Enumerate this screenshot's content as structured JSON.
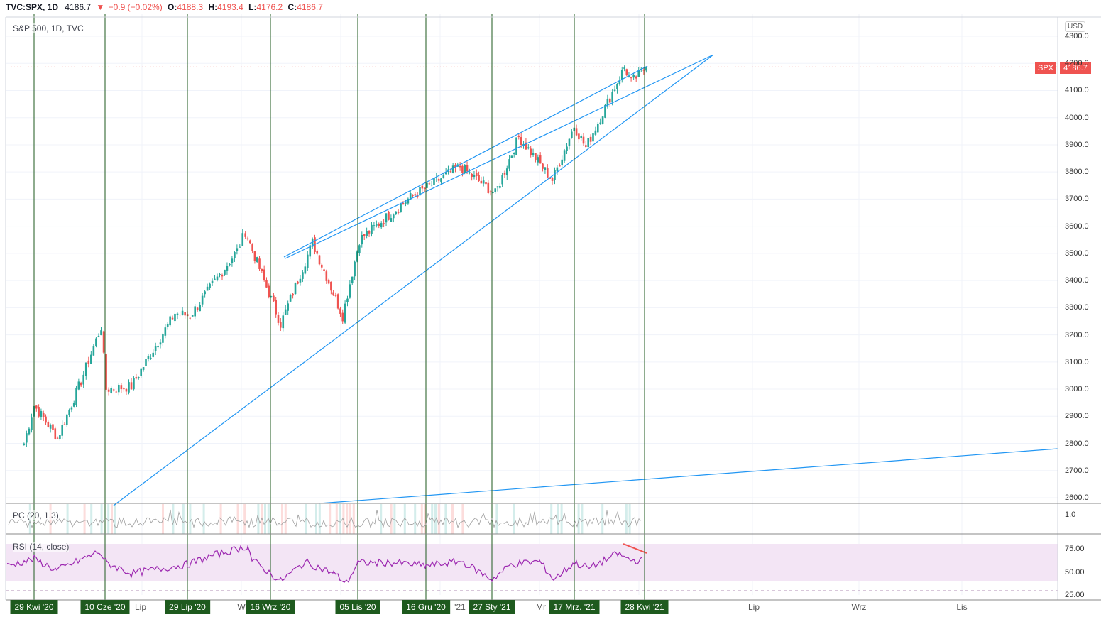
{
  "header": {
    "symbol": "TVC:SPX, 1D",
    "last": "4186.7",
    "change": "−0.9 (−0.02%)",
    "o_label": "O:",
    "o_value": "4188.3",
    "h_label": "H:",
    "h_value": "4193.4",
    "l_label": "L:",
    "l_value": "4176.2",
    "c_label": "C:",
    "c_value": "4186.7"
  },
  "chart": {
    "title": "S&P 500, 1D, TVC",
    "currency": "USD",
    "symbol_badge": "SPX",
    "price_badge": "4186.7",
    "colors": {
      "up": "#26a69a",
      "down": "#ef5350",
      "trendline": "#2196f3",
      "vline": "#1e5a1e",
      "rsi": "#9c27b0",
      "rsi_band": "#f3e5f5"
    }
  },
  "price_axis": [
    "4300.0",
    "4200.0",
    "4100.0",
    "4000.0",
    "3900.0",
    "3800.0",
    "3700.0",
    "3600.0",
    "3500.0",
    "3400.0",
    "3300.0",
    "3200.0",
    "3100.0",
    "3000.0",
    "2900.0",
    "2800.0",
    "2700.0",
    "2600.0"
  ],
  "pc_pane": {
    "label": "PC (20, 1.3)",
    "axis": [
      "1.0"
    ]
  },
  "rsi_pane": {
    "label": "RSI (14, close)",
    "axis": [
      "75.00",
      "50.00",
      "25.00"
    ]
  },
  "time_axis": {
    "highlighted": [
      "29 Kwi '20",
      "10 Cze '20",
      "29 Lip '20",
      "16 Wrz '20",
      "05 Lis '20",
      "16 Gru '20",
      "27 Sty '21",
      "17 Mrz. '21",
      "28 Kwi '21"
    ],
    "plain": [
      "Lip",
      "W",
      "'21",
      "Mr",
      "Lip",
      "Wrz",
      "Lis"
    ]
  },
  "chart_data": {
    "type": "candlestick",
    "symbol": "TVC:SPX",
    "interval": "1D",
    "ylim": [
      2590,
      4330
    ],
    "close_path": [
      {
        "date": "2020-04-23",
        "close": 2800
      },
      {
        "date": "2020-04-29",
        "close": 2940
      },
      {
        "date": "2020-05-13",
        "close": 2820
      },
      {
        "date": "2020-05-27",
        "close": 3030
      },
      {
        "date": "2020-06-08",
        "close": 3230
      },
      {
        "date": "2020-06-11",
        "close": 3000
      },
      {
        "date": "2020-06-26",
        "close": 3010
      },
      {
        "date": "2020-07-22",
        "close": 3280
      },
      {
        "date": "2020-07-31",
        "close": 3270
      },
      {
        "date": "2020-08-28",
        "close": 3510
      },
      {
        "date": "2020-09-02",
        "close": 3580
      },
      {
        "date": "2020-09-23",
        "close": 3240
      },
      {
        "date": "2020-10-12",
        "close": 3540
      },
      {
        "date": "2020-10-30",
        "close": 3270
      },
      {
        "date": "2020-11-09",
        "close": 3550
      },
      {
        "date": "2020-12-08",
        "close": 3700
      },
      {
        "date": "2021-01-08",
        "close": 3820
      },
      {
        "date": "2021-01-29",
        "close": 3720
      },
      {
        "date": "2021-02-12",
        "close": 3930
      },
      {
        "date": "2021-03-04",
        "close": 3770
      },
      {
        "date": "2021-03-17",
        "close": 3970
      },
      {
        "date": "2021-03-24",
        "close": 3890
      },
      {
        "date": "2021-04-16",
        "close": 4185
      },
      {
        "date": "2021-04-20",
        "close": 4130
      },
      {
        "date": "2021-04-29",
        "close": 4186.7
      }
    ],
    "rsi": {
      "period": 14,
      "upper": 70,
      "lower": 30
    },
    "trendlines": 4,
    "vertical_markers": [
      "29 Kwi '20",
      "10 Cze '20",
      "29 Lip '20",
      "16 Wrz '20",
      "05 Lis '20",
      "16 Gru '20",
      "27 Sty '21",
      "17 Mrz. '21",
      "28 Kwi '21"
    ]
  }
}
